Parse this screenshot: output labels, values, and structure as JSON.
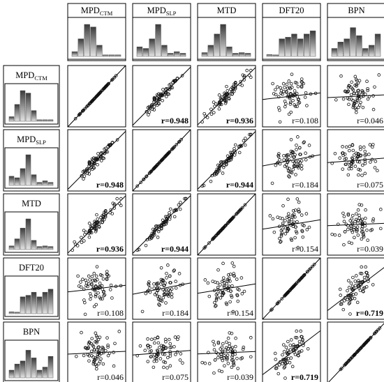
{
  "chart_data": {
    "type": "scatter",
    "title": "",
    "variables": [
      {
        "key": "MPD_CTM",
        "base": "MPD",
        "sub": "CTM"
      },
      {
        "key": "MPD_SLP",
        "base": "MPD",
        "sub": "SLP"
      },
      {
        "key": "MTD",
        "base": "MTD",
        "sub": ""
      },
      {
        "key": "DFT20",
        "base": "DFT20",
        "sub": ""
      },
      {
        "key": "BPN",
        "base": "BPN",
        "sub": ""
      }
    ],
    "correlations": [
      {
        "i": 0,
        "j": 1,
        "r": 0.948,
        "label": "r=0.948",
        "bold": true
      },
      {
        "i": 0,
        "j": 2,
        "r": 0.936,
        "label": "r=0.936",
        "bold": true
      },
      {
        "i": 0,
        "j": 3,
        "r": 0.108,
        "label": "r=0.108",
        "bold": false
      },
      {
        "i": 0,
        "j": 4,
        "r": 0.046,
        "label": "r=0.046",
        "bold": false
      },
      {
        "i": 1,
        "j": 2,
        "r": 0.944,
        "label": "r=0.944",
        "bold": true
      },
      {
        "i": 1,
        "j": 3,
        "r": 0.184,
        "label": "r=0.184",
        "bold": false
      },
      {
        "i": 1,
        "j": 4,
        "r": 0.075,
        "label": "r=0.075",
        "bold": false
      },
      {
        "i": 2,
        "j": 3,
        "r": 0.154,
        "label": "r=0.154",
        "bold": false
      },
      {
        "i": 2,
        "j": 4,
        "r": 0.039,
        "label": "r=0.039",
        "bold": false
      },
      {
        "i": 3,
        "j": 4,
        "r": 0.719,
        "label": "r=0.719",
        "bold": true
      }
    ],
    "histograms": {
      "MPD_CTM": [
        0.15,
        0.55,
        1.0,
        0.92,
        0.35,
        0.05,
        0.05,
        0.05
      ],
      "MPD_SLP": [
        0.3,
        0.25,
        0.55,
        1.0,
        0.35,
        0.1,
        0.15,
        0.1
      ],
      "MTD": [
        0.12,
        0.35,
        0.7,
        1.0,
        0.3,
        0.1,
        0.12,
        0.1
      ],
      "DFT20": [
        0.06,
        0.05,
        0.55,
        0.6,
        0.7,
        0.55,
        0.7,
        0.8
      ],
      "BPN": [
        0.25,
        0.45,
        0.55,
        0.9,
        0.65,
        0.25,
        0.35,
        0.7
      ]
    },
    "grid": false,
    "legend": "none"
  }
}
